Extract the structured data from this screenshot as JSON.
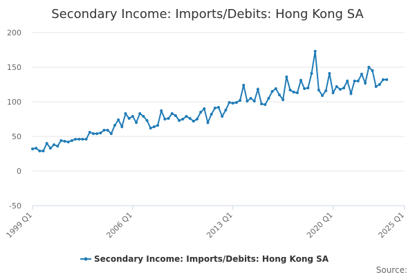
{
  "chart_data": {
    "type": "line",
    "title": "Secondary Income: Imports/Debits: Hong Kong SA",
    "xlabel": "",
    "ylabel": "",
    "x_ticks": [
      "1999 Q1",
      "2006 Q1",
      "2013 Q1",
      "2020 Q1",
      "2025 Q1"
    ],
    "y_ticks": [
      "-50",
      "0",
      "50",
      "100",
      "150",
      "200"
    ],
    "ylim": [
      -50,
      200
    ],
    "grid": true,
    "legend_position": "bottom",
    "series_color": "#1f7bb6",
    "series": [
      {
        "name": "Secondary Income: Imports/Debits: Hong Kong SA",
        "start": "1999 Q1",
        "frequency": "quarterly",
        "values": [
          32,
          33,
          29,
          29,
          40,
          33,
          38,
          36,
          44,
          43,
          42,
          44,
          46,
          46,
          46,
          46,
          56,
          54,
          54,
          55,
          59,
          59,
          54,
          66,
          74,
          64,
          83,
          76,
          79,
          70,
          83,
          79,
          73,
          62,
          64,
          66,
          87,
          75,
          76,
          83,
          80,
          73,
          75,
          79,
          76,
          72,
          75,
          85,
          90,
          70,
          82,
          91,
          92,
          79,
          88,
          99,
          98,
          99,
          102,
          124,
          101,
          105,
          101,
          118,
          97,
          96,
          105,
          115,
          119,
          110,
          103,
          136,
          117,
          114,
          113,
          131,
          119,
          120,
          141,
          173,
          117,
          109,
          116,
          141,
          113,
          122,
          118,
          120,
          130,
          112,
          130,
          130,
          140,
          127,
          150,
          145,
          122,
          125,
          132,
          132
        ]
      }
    ]
  },
  "footer": {
    "source_label": "Source:"
  }
}
